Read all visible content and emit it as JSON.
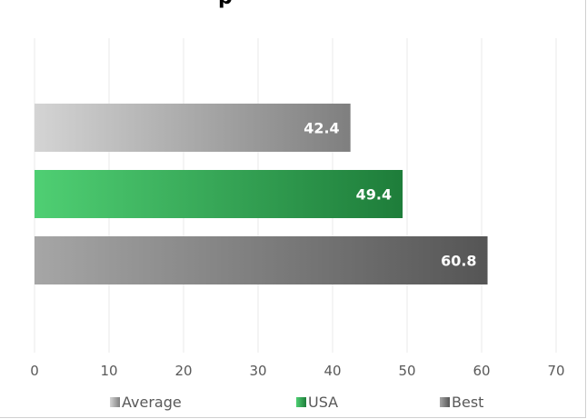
{
  "chart_data": {
    "type": "bar",
    "orientation": "horizontal",
    "title": "p",
    "categories": [
      "Average",
      "USA",
      "Best"
    ],
    "values": [
      42.4,
      49.4,
      60.8
    ],
    "value_labels": [
      "42.4",
      "49.4",
      "60.8"
    ],
    "xlim": [
      0,
      70
    ],
    "xticks": [
      "0",
      "10",
      "20",
      "30",
      "40",
      "50",
      "60",
      "70"
    ],
    "grid": "vertical",
    "legend": {
      "position": "bottom",
      "entries": [
        "Average",
        "USA",
        "Best"
      ]
    },
    "colors": {
      "Average": [
        "#d4d4d4",
        "#7f7f7f"
      ],
      "USA": [
        "#4fcf73",
        "#1e7d3a"
      ],
      "Best": [
        "#a6a6a6",
        "#555555"
      ],
      "gridline": "#e8e8e8",
      "tick_text": "#595959"
    }
  }
}
